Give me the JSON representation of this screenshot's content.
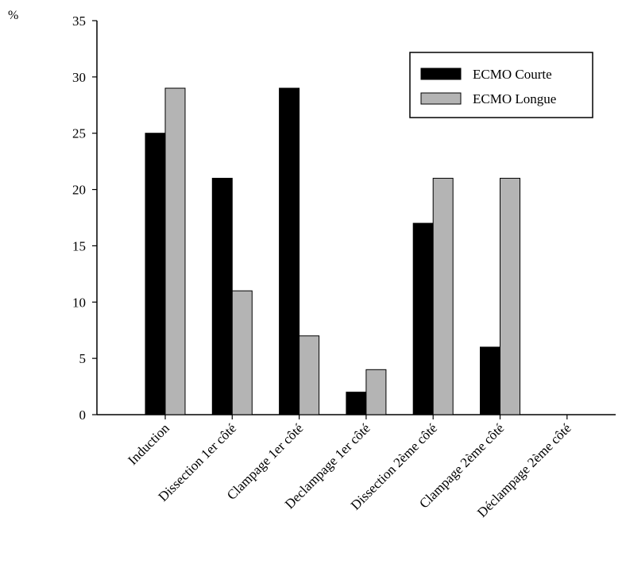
{
  "chart_data": {
    "type": "bar",
    "title": "",
    "xlabel": "",
    "ylabel": "%",
    "ylim": [
      0,
      35
    ],
    "yticks": [
      0,
      5,
      10,
      15,
      20,
      25,
      30,
      35
    ],
    "grid": false,
    "legend_position": "top-right",
    "categories": [
      "Induction",
      "Dissection 1er côté",
      "Clampage 1er côté",
      "Declampage 1er côté",
      "Dissection 2ème côté",
      "Clampage 2ème côté",
      "Déclampage 2ème côté"
    ],
    "series": [
      {
        "name": "ECMO Courte",
        "color": "#000000",
        "values": [
          25,
          21,
          29,
          2,
          17,
          6,
          0
        ]
      },
      {
        "name": "ECMO Longue",
        "color": "#b4b4b4",
        "values": [
          29,
          11,
          7,
          4,
          21,
          21,
          0
        ]
      }
    ]
  }
}
